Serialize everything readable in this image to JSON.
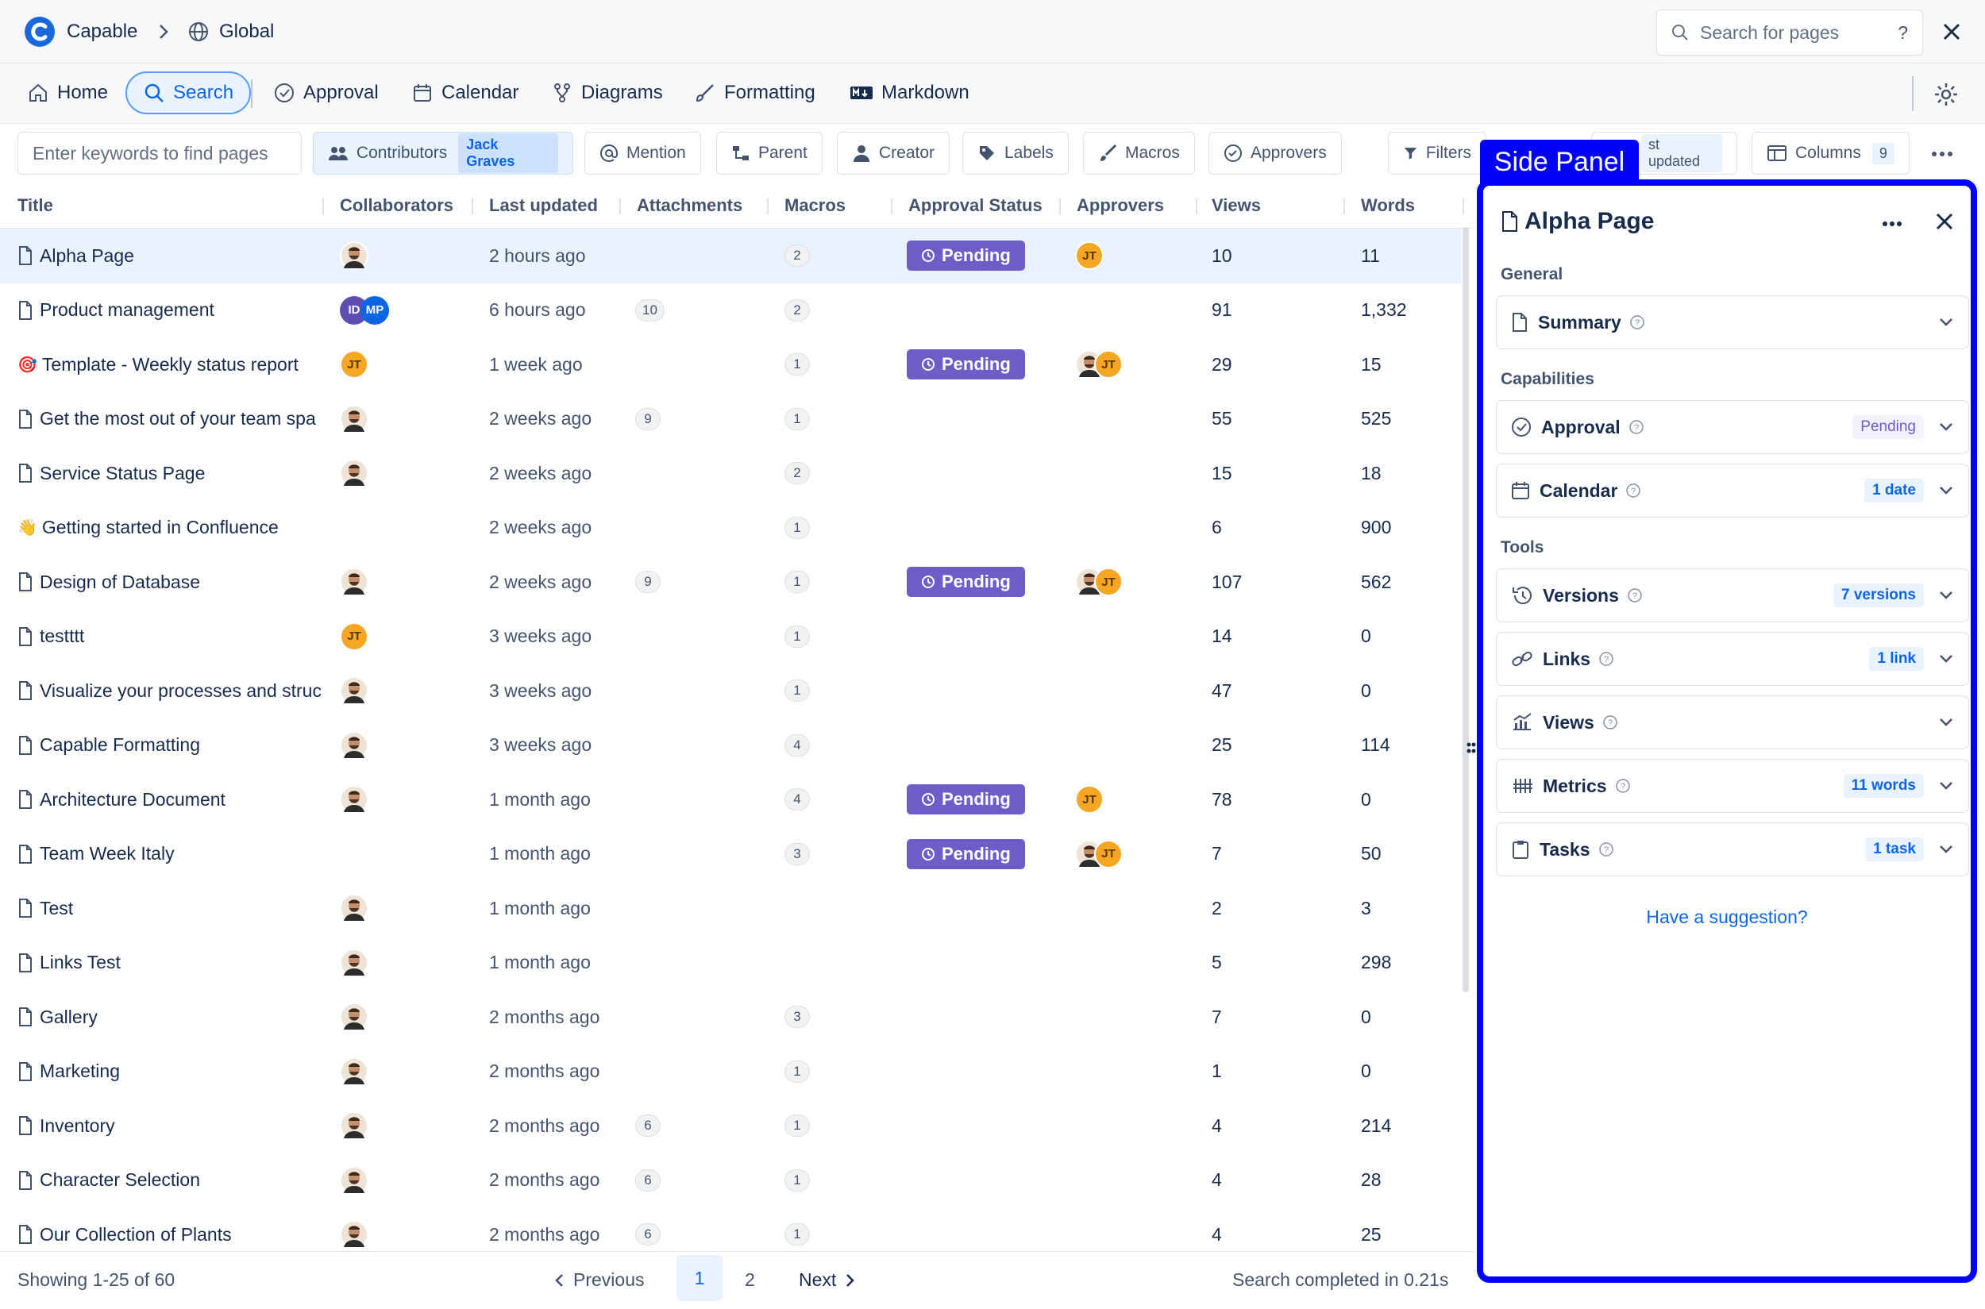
{
  "app": {
    "name": "Capable",
    "space": "Global"
  },
  "top_search": {
    "placeholder": "Search for pages",
    "help": "?"
  },
  "nav": {
    "home": "Home",
    "search": "Search",
    "approval": "Approval",
    "calendar": "Calendar",
    "diagrams": "Diagrams",
    "formatting": "Formatting",
    "markdown": "Markdown"
  },
  "filters": {
    "keyword_placeholder": "Enter keywords to find pages",
    "contributors": "Contributors",
    "contributors_value": "Jack Graves",
    "mention": "Mention",
    "parent": "Parent",
    "creator": "Creator",
    "labels": "Labels",
    "macros": "Macros",
    "approvers": "Approvers",
    "filters": "Filters",
    "sort_fragment": "st updated",
    "columns": "Columns",
    "columns_count": "9"
  },
  "columns": [
    "Title",
    "Collaborators",
    "Last updated",
    "Attachments",
    "Macros",
    "Approval Status",
    "Approvers",
    "Views",
    "Words"
  ],
  "rows": [
    {
      "icon": "page",
      "title": "Alpha Page",
      "collab": "photo",
      "updated": "2 hours ago",
      "att": "",
      "macros": "2",
      "status": "Pending",
      "approvers": "JT",
      "views": "10",
      "words": "11"
    },
    {
      "icon": "page",
      "title": "Product management",
      "collab": "IDMP",
      "updated": "6 hours ago",
      "att": "10",
      "macros": "2",
      "status": "",
      "approvers": "",
      "views": "91",
      "words": "1,332"
    },
    {
      "icon": "target",
      "title": "Template - Weekly status report",
      "collab": "JT",
      "updated": "1 week ago",
      "att": "",
      "macros": "1",
      "status": "Pending",
      "approvers": "photo+JT",
      "views": "29",
      "words": "15"
    },
    {
      "icon": "page",
      "title": "Get the most out of your team spa",
      "collab": "photo",
      "updated": "2 weeks ago",
      "att": "9",
      "macros": "1",
      "status": "",
      "approvers": "",
      "views": "55",
      "words": "525"
    },
    {
      "icon": "page",
      "title": "Service Status Page",
      "collab": "photo",
      "updated": "2 weeks ago",
      "att": "",
      "macros": "2",
      "status": "",
      "approvers": "",
      "views": "15",
      "words": "18"
    },
    {
      "icon": "wave",
      "title": "Getting started in Confluence",
      "collab": "",
      "updated": "2 weeks ago",
      "att": "",
      "macros": "1",
      "status": "",
      "approvers": "",
      "views": "6",
      "words": "900"
    },
    {
      "icon": "page",
      "title": "Design of Database",
      "collab": "photo",
      "updated": "2 weeks ago",
      "att": "9",
      "macros": "1",
      "status": "Pending",
      "approvers": "photo+JT",
      "views": "107",
      "words": "562"
    },
    {
      "icon": "page",
      "title": "testttt",
      "collab": "JT",
      "updated": "3 weeks ago",
      "att": "",
      "macros": "1",
      "status": "",
      "approvers": "",
      "views": "14",
      "words": "0"
    },
    {
      "icon": "page",
      "title": "Visualize your processes and struc",
      "collab": "photo",
      "updated": "3 weeks ago",
      "att": "",
      "macros": "1",
      "status": "",
      "approvers": "",
      "views": "47",
      "words": "0"
    },
    {
      "icon": "page",
      "title": "Capable Formatting",
      "collab": "photo",
      "updated": "3 weeks ago",
      "att": "",
      "macros": "4",
      "status": "",
      "approvers": "",
      "views": "25",
      "words": "114"
    },
    {
      "icon": "page",
      "title": "Architecture Document",
      "collab": "photo",
      "updated": "1 month ago",
      "att": "",
      "macros": "4",
      "status": "Pending",
      "approvers": "JT",
      "views": "78",
      "words": "0"
    },
    {
      "icon": "page",
      "title": "Team Week Italy",
      "collab": "",
      "updated": "1 month ago",
      "att": "",
      "macros": "3",
      "status": "Pending",
      "approvers": "photo+JT",
      "views": "7",
      "words": "50"
    },
    {
      "icon": "page",
      "title": "Test",
      "collab": "photo",
      "updated": "1 month ago",
      "att": "",
      "macros": "",
      "status": "",
      "approvers": "",
      "views": "2",
      "words": "3"
    },
    {
      "icon": "page",
      "title": "Links Test",
      "collab": "photo",
      "updated": "1 month ago",
      "att": "",
      "macros": "",
      "status": "",
      "approvers": "",
      "views": "5",
      "words": "298"
    },
    {
      "icon": "page",
      "title": "Gallery",
      "collab": "photo",
      "updated": "2 months ago",
      "att": "",
      "macros": "3",
      "status": "",
      "approvers": "",
      "views": "7",
      "words": "0"
    },
    {
      "icon": "page",
      "title": "Marketing",
      "collab": "photo",
      "updated": "2 months ago",
      "att": "",
      "macros": "1",
      "status": "",
      "approvers": "",
      "views": "1",
      "words": "0"
    },
    {
      "icon": "page",
      "title": "Inventory",
      "collab": "photo",
      "updated": "2 months ago",
      "att": "6",
      "macros": "1",
      "status": "",
      "approvers": "",
      "views": "4",
      "words": "214"
    },
    {
      "icon": "page",
      "title": "Character Selection",
      "collab": "photo",
      "updated": "2 months ago",
      "att": "6",
      "macros": "1",
      "status": "",
      "approvers": "",
      "views": "4",
      "words": "28"
    },
    {
      "icon": "page",
      "title": "Our Collection of Plants",
      "collab": "photo",
      "updated": "2 months ago",
      "att": "6",
      "macros": "1",
      "status": "",
      "approvers": "",
      "views": "4",
      "words": "25"
    }
  ],
  "footer": {
    "showing": "Showing 1-25 of 60",
    "previous": "Previous",
    "page1": "1",
    "page2": "2",
    "next": "Next",
    "searched": "Search completed in 0.21s"
  },
  "panel": {
    "tag": "Side Panel",
    "title": "Alpha Page",
    "general": "General",
    "summary": "Summary",
    "capabilities": "Capabilities",
    "approval": "Approval",
    "approval_badge": "Pending",
    "calendar": "Calendar",
    "calendar_badge": "1 date",
    "tools": "Tools",
    "versions": "Versions",
    "versions_badge": "7 versions",
    "links": "Links",
    "links_badge": "1 link",
    "views": "Views",
    "metrics": "Metrics",
    "metrics_badge": "11 words",
    "tasks": "Tasks",
    "tasks_badge": "1 task",
    "suggestion": "Have a suggestion?"
  },
  "colors": {
    "accent": "#0c66e4",
    "pending": "#6e5dc6",
    "panel_outline": "#0000ff",
    "avatar_jt": "#f5a623"
  }
}
